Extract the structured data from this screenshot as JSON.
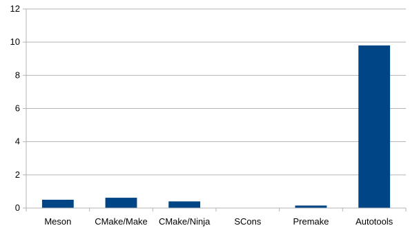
{
  "chart_data": {
    "type": "bar",
    "categories": [
      "Meson",
      "CMake/Make",
      "CMake/Ninja",
      "SCons",
      "Premake",
      "Autotools"
    ],
    "values": [
      0.5,
      0.62,
      0.4,
      0,
      0.15,
      9.8
    ],
    "yticks": [
      "0",
      "2",
      "4",
      "6",
      "8",
      "10",
      "12"
    ],
    "ylim": [
      0,
      12
    ],
    "grid": true,
    "legend": "none",
    "bar_color": "#004586",
    "grid_color": "#b3b3b3"
  }
}
